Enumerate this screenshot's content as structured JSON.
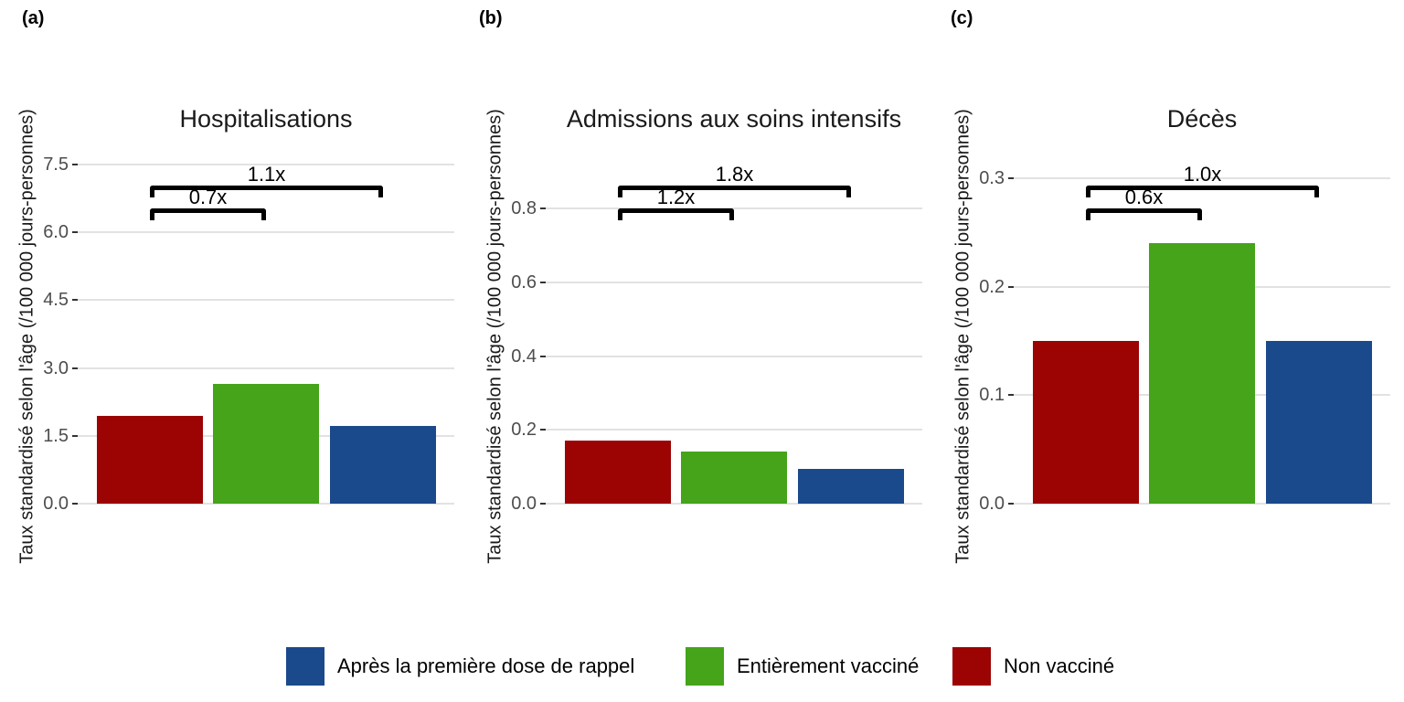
{
  "figure": {
    "panel_labels": [
      "(a)",
      "(b)",
      "(c)"
    ],
    "y_axis_label": "Taux standardisé selon l'âge (/100 000 jours-personnes)",
    "palette": {
      "non_vaccine": "#9c0404",
      "entierement_vaccine": "#45a41a",
      "premiere_dose_rappel": "#1a498c"
    },
    "style": {
      "gridline_color": "#e2e2e2",
      "tick_color": "#333333",
      "tick_label_color": "#4d4d4d",
      "bracket_color": "#000000"
    }
  },
  "chart_data": [
    {
      "type": "bar",
      "panel": "(a)",
      "title": "Hospitalisations",
      "ylabel": "Taux standardisé selon l'âge (/100 000 jours-personnes)",
      "xlabel": "",
      "categories": [
        "Non vacciné",
        "Entièrement vacciné",
        "Après la première dose de rappel"
      ],
      "values": [
        1.95,
        2.65,
        1.72
      ],
      "bar_color_keys": [
        "non_vaccine",
        "entierement_vaccine",
        "premiere_dose_rappel"
      ],
      "yticks": [
        0.0,
        1.5,
        3.0,
        4.5,
        6.0,
        7.5
      ],
      "ytick_labels": [
        "0.0",
        "1.5",
        "3.0",
        "4.5",
        "6.0",
        "7.5"
      ],
      "ylim": [
        0,
        7.9
      ],
      "grid": "horizontal-major",
      "legend_position": "bottom-shared",
      "annotations": [
        {
          "label": "0.7x",
          "from_bar": 0,
          "to_bar": 1
        },
        {
          "label": "1.1x",
          "from_bar": 0,
          "to_bar": 2
        }
      ]
    },
    {
      "type": "bar",
      "panel": "(b)",
      "title": "Admissions aux soins intensifs",
      "ylabel": "Taux standardisé selon l'âge (/100 000 jours-personnes)",
      "xlabel": "",
      "categories": [
        "Non vacciné",
        "Entièrement vacciné",
        "Après la première dose de rappel"
      ],
      "values": [
        0.17,
        0.14,
        0.095
      ],
      "bar_color_keys": [
        "non_vaccine",
        "entierement_vaccine",
        "premiere_dose_rappel"
      ],
      "yticks": [
        0.0,
        0.2,
        0.4,
        0.6,
        0.8
      ],
      "ytick_labels": [
        "0.0",
        "0.2",
        "0.4",
        "0.6",
        "0.8"
      ],
      "ylim": [
        0,
        0.86
      ],
      "grid": "horizontal-major",
      "legend_position": "bottom-shared",
      "annotations": [
        {
          "label": "1.2x",
          "from_bar": 0,
          "to_bar": 1
        },
        {
          "label": "1.8x",
          "from_bar": 0,
          "to_bar": 2
        }
      ]
    },
    {
      "type": "bar",
      "panel": "(c)",
      "title": "Décès",
      "ylabel": "Taux standardisé selon l'âge (/100 000 jours-personnes)",
      "xlabel": "",
      "categories": [
        "Non vacciné",
        "Entièrement vacciné",
        "Après la première dose de rappel"
      ],
      "values": [
        0.15,
        0.24,
        0.15
      ],
      "bar_color_keys": [
        "non_vaccine",
        "entierement_vaccine",
        "premiere_dose_rappel"
      ],
      "yticks": [
        0.0,
        0.1,
        0.2,
        0.3
      ],
      "ytick_labels": [
        "0.0",
        "0.1",
        "0.2",
        "0.3"
      ],
      "ylim": [
        0,
        0.3
      ],
      "grid": "horizontal-major",
      "legend_position": "bottom-shared",
      "annotations": [
        {
          "label": "0.6x",
          "from_bar": 0,
          "to_bar": 1
        },
        {
          "label": "1.0x",
          "from_bar": 0,
          "to_bar": 2
        }
      ]
    }
  ],
  "legend": {
    "items": [
      {
        "label": "Après la première dose de rappel",
        "color_key": "premiere_dose_rappel"
      },
      {
        "label": "Entièrement vacciné",
        "color_key": "entierement_vaccine"
      },
      {
        "label": "Non vacciné",
        "color_key": "non_vaccine"
      }
    ]
  }
}
